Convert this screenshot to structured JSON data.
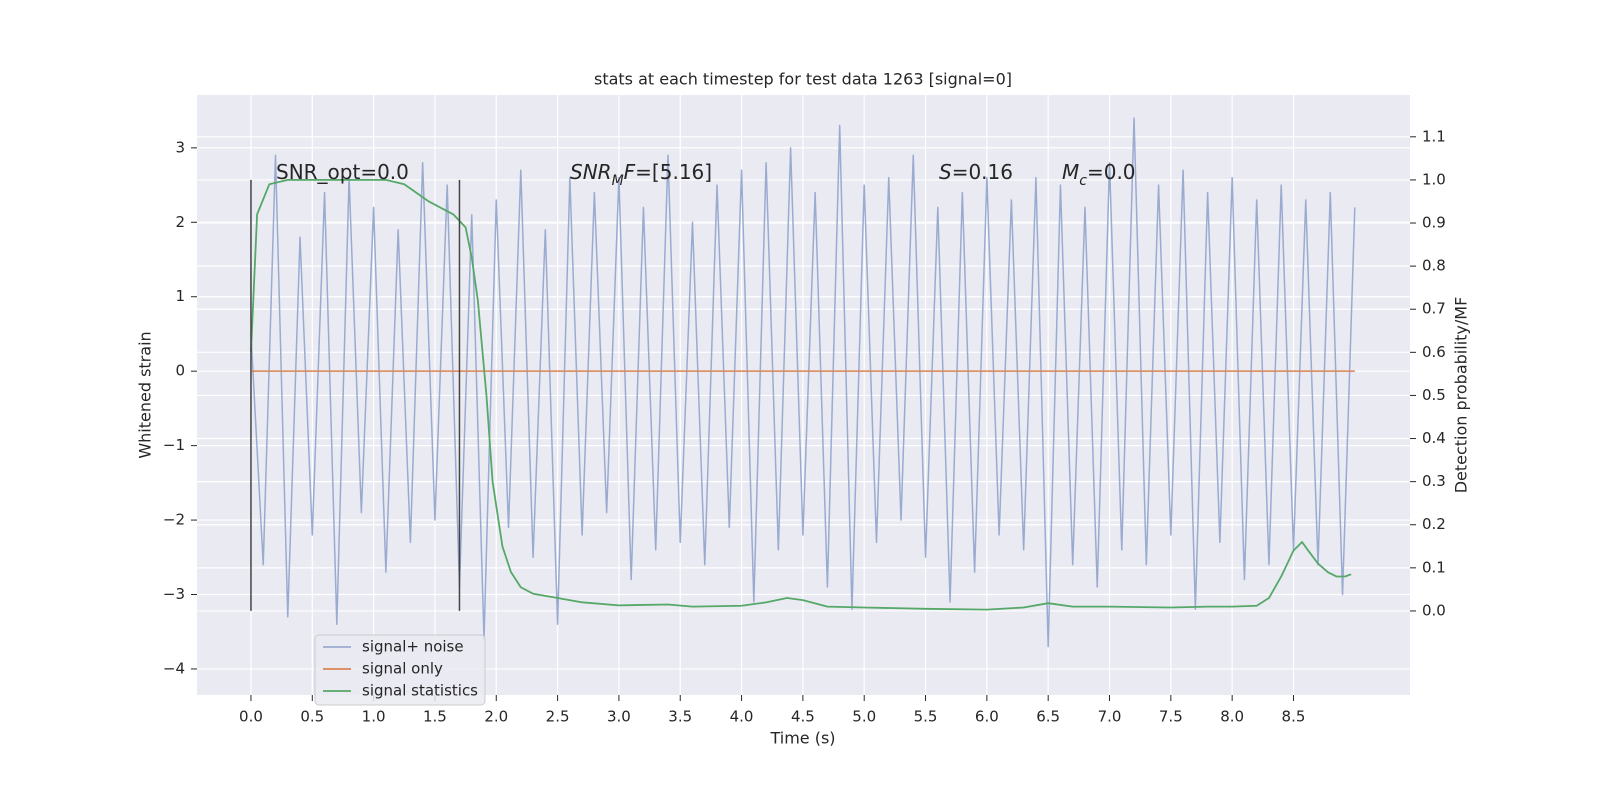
{
  "chart_data": {
    "type": "line",
    "title": "stats at each timestep for test data 1263 [signal=0]",
    "xlabel": "Time (s)",
    "ylabel": "Whitened strain",
    "y2label": "Detection probability/MF",
    "xlim": [
      -0.44,
      9.45
    ],
    "ylim": [
      -4.35,
      3.71
    ],
    "y2lim": [
      -0.195,
      1.197
    ],
    "xticks": [
      {
        "value": 0,
        "label": "0.0"
      },
      0.5,
      {
        "value": 1,
        "label": "1.0"
      },
      1.5,
      {
        "value": 2,
        "label": "2.0"
      },
      2.5,
      {
        "value": 3,
        "label": "3.0"
      },
      3.5,
      {
        "value": 4,
        "label": "4.0"
      },
      4.5,
      {
        "value": 5,
        "label": "5.0"
      },
      5.5,
      {
        "value": 6,
        "label": "6.0"
      },
      6.5,
      {
        "value": 7,
        "label": "7.0"
      },
      7.5,
      {
        "value": 8,
        "label": "8.0"
      },
      8.5
    ],
    "yticks": [
      {
        "value": -4,
        "label": "−4"
      },
      {
        "value": -3,
        "label": "−3"
      },
      {
        "value": -2,
        "label": "−2"
      },
      {
        "value": -1,
        "label": "−1"
      },
      0,
      1,
      2,
      3
    ],
    "y2ticks": [
      {
        "value": 0,
        "label": "0.0"
      },
      0.1,
      0.2,
      0.3,
      0.4,
      0.5,
      0.6,
      0.7,
      0.8,
      0.9,
      {
        "value": 1,
        "label": "1.0"
      },
      1.1
    ],
    "grid": true,
    "legend": "lower left",
    "series": [
      {
        "name": "signal+ noise",
        "color": "#9aabd0",
        "x": [
          0.0,
          0.1,
          0.2,
          0.3,
          0.4,
          0.5,
          0.6,
          0.7,
          0.8,
          0.9,
          1.0,
          1.1,
          1.2,
          1.3,
          1.4,
          1.5,
          1.6,
          1.7,
          1.8,
          1.9,
          2.0,
          2.1,
          2.2,
          2.3,
          2.4,
          2.5,
          2.6,
          2.7,
          2.8,
          2.9,
          3.0,
          3.1,
          3.2,
          3.3,
          3.4,
          3.5,
          3.6,
          3.7,
          3.8,
          3.9,
          4.0,
          4.1,
          4.2,
          4.3,
          4.4,
          4.5,
          4.6,
          4.7,
          4.8,
          4.9,
          5.0,
          5.1,
          5.2,
          5.3,
          5.4,
          5.5,
          5.6,
          5.7,
          5.8,
          5.9,
          6.0,
          6.1,
          6.2,
          6.3,
          6.4,
          6.5,
          6.6,
          6.7,
          6.8,
          6.9,
          7.0,
          7.1,
          7.2,
          7.3,
          7.4,
          7.5,
          7.6,
          7.7,
          7.8,
          7.9,
          8.0,
          8.1,
          8.2,
          8.3,
          8.4,
          8.5,
          8.6,
          8.7,
          8.8,
          8.9,
          9.0
        ],
        "values": [
          0.5,
          -2.6,
          2.9,
          -3.3,
          1.8,
          -2.2,
          2.4,
          -3.4,
          2.6,
          -1.9,
          2.2,
          -2.7,
          1.9,
          -2.3,
          2.8,
          -2.0,
          2.5,
          -2.9,
          2.1,
          -3.6,
          2.3,
          -2.1,
          2.7,
          -2.5,
          1.9,
          -3.4,
          2.6,
          -2.2,
          2.4,
          -1.9,
          2.6,
          -2.8,
          2.2,
          -2.4,
          2.9,
          -2.3,
          2.0,
          -2.6,
          2.5,
          -2.1,
          2.7,
          -3.1,
          2.8,
          -2.4,
          3.0,
          -2.2,
          2.4,
          -2.9,
          3.3,
          -3.2,
          2.5,
          -2.3,
          2.6,
          -2.0,
          2.9,
          -2.5,
          2.2,
          -3.1,
          2.4,
          -2.7,
          2.6,
          -2.2,
          2.3,
          -2.4,
          2.6,
          -3.7,
          2.5,
          -2.6,
          2.2,
          -2.9,
          2.8,
          -2.4,
          3.4,
          -2.6,
          2.5,
          -2.2,
          2.7,
          -3.2,
          2.4,
          -2.3,
          2.6,
          -2.8,
          2.3,
          -2.6,
          2.5,
          -2.4,
          2.3,
          -2.6,
          2.4,
          -3.0,
          2.2
        ]
      },
      {
        "name": "signal only",
        "color": "#dd8452",
        "x": [
          0,
          9.0
        ],
        "values": [
          0,
          0
        ]
      },
      {
        "name": "signal statistics",
        "color": "#55a868",
        "axis": "y2",
        "x": [
          0,
          0.05,
          0.15,
          0.3,
          0.7,
          1.1,
          1.25,
          1.45,
          1.65,
          1.75,
          1.8,
          1.85,
          1.92,
          1.97,
          2.05,
          2.12,
          2.2,
          2.3,
          2.5,
          2.7,
          3.0,
          3.4,
          3.6,
          4.0,
          4.2,
          4.37,
          4.5,
          4.7,
          5.0,
          5.5,
          6.0,
          6.3,
          6.5,
          6.7,
          7.0,
          7.5,
          7.8,
          8.0,
          8.2,
          8.3,
          8.4,
          8.5,
          8.57,
          8.62,
          8.7,
          8.78,
          8.85,
          8.92,
          8.97
        ],
        "values": [
          0.6,
          0.92,
          0.99,
          1.0,
          1.0,
          1.0,
          0.99,
          0.95,
          0.92,
          0.89,
          0.82,
          0.72,
          0.5,
          0.3,
          0.15,
          0.09,
          0.055,
          0.04,
          0.03,
          0.02,
          0.013,
          0.015,
          0.01,
          0.012,
          0.02,
          0.03,
          0.025,
          0.01,
          0.008,
          0.005,
          0.003,
          0.008,
          0.018,
          0.01,
          0.01,
          0.008,
          0.01,
          0.01,
          0.012,
          0.03,
          0.08,
          0.14,
          0.16,
          0.14,
          0.11,
          0.09,
          0.08,
          0.08,
          0.085
        ]
      }
    ],
    "vlines": [
      {
        "x": 0,
        "ymin": -3.22,
        "ymax": 2.57,
        "color": "#444444"
      },
      {
        "x": 1.7,
        "ymin": -3.22,
        "ymax": 2.57,
        "color": "#444444"
      }
    ],
    "annotations": [
      {
        "parts": [
          {
            "text": "SNR_opt=0.0",
            "style": "normal"
          }
        ]
      },
      {
        "parts": [
          {
            "text": "SNR",
            "style": "italic"
          },
          {
            "text": "M",
            "style": "sub"
          },
          {
            "text": "F",
            "style": "italic"
          },
          {
            "text": "=[5.16]",
            "style": "normal"
          }
        ]
      },
      {
        "parts": [
          {
            "text": "S",
            "style": "italic"
          },
          {
            "text": "=0.16",
            "style": "normal"
          }
        ]
      },
      {
        "parts": [
          {
            "text": "M",
            "style": "italic"
          },
          {
            "text": "c",
            "style": "sub"
          },
          {
            "text": "=0.0",
            "style": "normal"
          }
        ]
      }
    ]
  }
}
